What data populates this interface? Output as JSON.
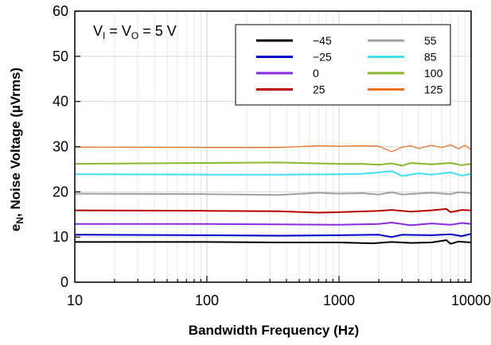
{
  "chart_data": {
    "type": "line",
    "title": "",
    "xlabel": "Bandwidth Frequency (Hz)",
    "ylabel_main": "e",
    "ylabel_sub": "N",
    "ylabel_rest": ", Noise Voltage (µVrms)",
    "xscale": "log",
    "xlim": [
      10,
      10000
    ],
    "ylim": [
      0,
      60
    ],
    "xticks": [
      10,
      100,
      1000,
      10000
    ],
    "xtick_labels": [
      "10",
      "100",
      "1000",
      "10000"
    ],
    "yticks": [
      0,
      10,
      20,
      30,
      40,
      50,
      60
    ],
    "ytick_labels": [
      "0",
      "10",
      "20",
      "30",
      "40",
      "50",
      "60"
    ],
    "grid": true,
    "legend_position": "top-right",
    "annotation": {
      "p1": "V",
      "s1": "I",
      "p2": " = V",
      "s2": "O",
      "p3": " = 5 V"
    },
    "series": [
      {
        "name": "−45",
        "color": "#000000",
        "x": [
          10,
          100,
          350,
          1000,
          1800,
          2500,
          3500,
          5000,
          6500,
          7000,
          8000,
          10000
        ],
        "y": [
          8.9,
          8.9,
          8.8,
          8.8,
          8.6,
          8.9,
          8.7,
          8.8,
          9.3,
          8.5,
          9.0,
          8.8
        ]
      },
      {
        "name": "−25",
        "color": "#0000cc",
        "x": [
          10,
          100,
          350,
          1000,
          2000,
          2500,
          3000,
          5000,
          7000,
          8500,
          10000
        ],
        "y": [
          10.5,
          10.4,
          10.3,
          10.4,
          10.5,
          10.0,
          10.5,
          10.4,
          10.6,
          10.2,
          10.7
        ]
      },
      {
        "name": "0",
        "color": "#8a2be2",
        "x": [
          10,
          100,
          350,
          1000,
          2000,
          2500,
          3500,
          5000,
          7000,
          8500,
          10000
        ],
        "y": [
          12.9,
          12.9,
          12.8,
          12.7,
          12.9,
          13.2,
          12.6,
          13.0,
          12.7,
          13.1,
          12.9
        ]
      },
      {
        "name": "25",
        "color": "#bb0000",
        "x": [
          10,
          100,
          350,
          700,
          1000,
          2000,
          2500,
          3500,
          5000,
          6500,
          7000,
          8500,
          10000
        ],
        "y": [
          15.9,
          15.8,
          15.7,
          15.4,
          15.5,
          15.8,
          16.0,
          15.6,
          15.9,
          16.2,
          15.5,
          16.0,
          15.9
        ]
      },
      {
        "name": "55",
        "color": "#a0a0a0",
        "x": [
          10,
          100,
          350,
          700,
          1000,
          1500,
          2000,
          2500,
          3000,
          5000,
          7000,
          8000,
          10000
        ],
        "y": [
          19.6,
          19.5,
          19.3,
          19.8,
          19.6,
          19.7,
          19.4,
          19.9,
          19.4,
          19.8,
          19.5,
          19.9,
          19.7
        ]
      },
      {
        "name": "85",
        "color": "#40e0f0",
        "x": [
          10,
          100,
          350,
          1000,
          1500,
          2000,
          2500,
          3000,
          4000,
          5000,
          7000,
          8500,
          10000
        ],
        "y": [
          23.9,
          23.8,
          23.8,
          23.9,
          24.0,
          24.3,
          24.6,
          23.5,
          24.1,
          23.8,
          24.3,
          23.6,
          24.0
        ]
      },
      {
        "name": "100",
        "color": "#8ab82c",
        "x": [
          10,
          100,
          350,
          1000,
          1500,
          2000,
          2500,
          3000,
          3500,
          5000,
          7000,
          8500,
          10000
        ],
        "y": [
          26.2,
          26.4,
          26.5,
          26.2,
          26.2,
          26.0,
          26.3,
          25.8,
          26.4,
          26.1,
          26.4,
          25.9,
          26.2
        ]
      },
      {
        "name": "125",
        "color": "#f07020",
        "x": [
          10,
          100,
          350,
          700,
          1000,
          1500,
          2000,
          2500,
          3000,
          3500,
          4000,
          5000,
          6000,
          7000,
          8000,
          9000,
          10000
        ],
        "y": [
          29.9,
          29.8,
          29.8,
          30.2,
          30.1,
          30.2,
          30.1,
          28.9,
          29.9,
          30.2,
          29.6,
          30.3,
          29.8,
          30.4,
          29.5,
          30.3,
          29.3
        ]
      }
    ]
  }
}
